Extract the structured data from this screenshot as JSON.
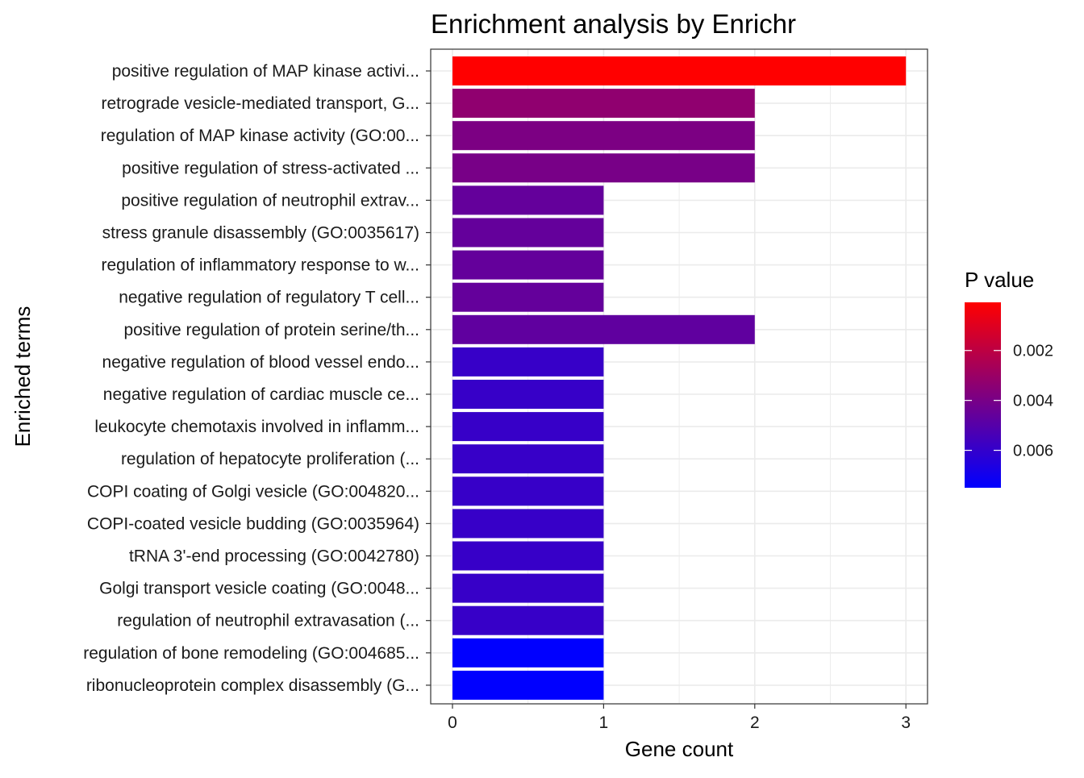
{
  "chart_data": {
    "type": "bar",
    "orientation": "horizontal",
    "title": "Enrichment analysis by Enrichr",
    "xlabel": "Gene count",
    "ylabel": "Enriched terms",
    "xlim": [
      0,
      3.15
    ],
    "x_ticks": [
      "0",
      "1",
      "2",
      "3"
    ],
    "grid": true,
    "legend": {
      "title": "P value",
      "placement": "right",
      "ticks": [
        {
          "value": 0.002,
          "label": "0.002"
        },
        {
          "value": 0.004,
          "label": "0.004"
        },
        {
          "value": 0.006,
          "label": "0.006"
        }
      ],
      "range": [
        7e-05,
        0.0075
      ],
      "low_color": "#FF0000",
      "high_color": "#0000FF"
    },
    "categories": [
      "positive regulation of MAP kinase activi...",
      "retrograde vesicle-mediated transport, G...",
      "regulation of MAP kinase activity (GO:00...",
      "positive regulation of stress-activated ...",
      "positive regulation of neutrophil extrav...",
      "stress granule disassembly (GO:0035617)",
      "regulation of inflammatory response to w...",
      "negative regulation of regulatory T cell...",
      "positive regulation of protein serine/th...",
      "negative regulation of blood vessel endo...",
      "negative regulation of cardiac muscle ce...",
      "leukocyte chemotaxis involved in inflamm...",
      "regulation of hepatocyte proliferation (...",
      "COPI coating of Golgi vesicle (GO:004820...",
      "COPI-coated vesicle budding (GO:0035964)",
      "tRNA 3'-end processing (GO:0042780)",
      "Golgi transport vesicle coating (GO:0048...",
      "regulation of neutrophil extravasation (...",
      "regulation of bone remodeling (GO:004685...",
      "ribonucleoprotein complex disassembly (G..."
    ],
    "values": [
      3,
      2,
      2,
      2,
      1,
      1,
      1,
      1,
      2,
      1,
      1,
      1,
      1,
      1,
      1,
      1,
      1,
      1,
      1,
      1
    ],
    "p_values": [
      7e-05,
      0.0033,
      0.0039,
      0.004,
      0.0046,
      0.0046,
      0.0046,
      0.0046,
      0.0047,
      0.0059,
      0.0059,
      0.0059,
      0.0059,
      0.0059,
      0.0059,
      0.0059,
      0.0059,
      0.0059,
      0.0075,
      0.0075
    ]
  }
}
